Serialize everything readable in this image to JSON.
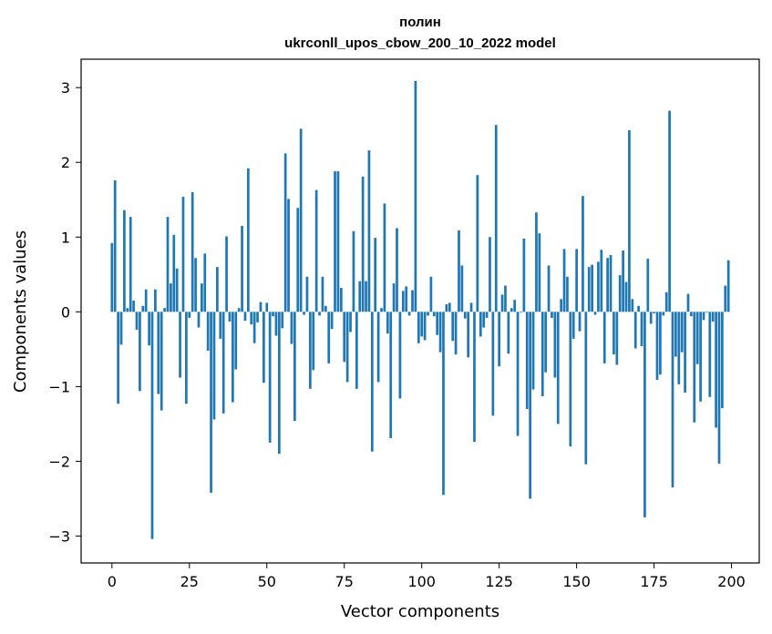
{
  "chart_data": {
    "type": "bar",
    "title": "полин",
    "subtitle": "ukrconll_upos_cbow_200_10_2022 model",
    "xlabel": "Vector components",
    "ylabel": "Components values",
    "xlim": [
      -9.95,
      208.95
    ],
    "ylim": [
      -3.36,
      3.38
    ],
    "xticks": [
      0,
      25,
      50,
      75,
      100,
      125,
      150,
      175,
      200
    ],
    "xtick_labels": [
      "0",
      "25",
      "50",
      "75",
      "100",
      "125",
      "150",
      "175",
      "200"
    ],
    "yticks": [
      -3,
      -2,
      -1,
      0,
      1,
      2,
      3
    ],
    "ytick_labels": [
      "−3",
      "−2",
      "−1",
      "0",
      "1",
      "2",
      "3"
    ],
    "grid": false,
    "bar_color": "#1f77b4",
    "x": [
      0,
      1,
      2,
      3,
      4,
      5,
      6,
      7,
      8,
      9,
      10,
      11,
      12,
      13,
      14,
      15,
      16,
      17,
      18,
      19,
      20,
      21,
      22,
      23,
      24,
      25,
      26,
      27,
      28,
      29,
      30,
      31,
      32,
      33,
      34,
      35,
      36,
      37,
      38,
      39,
      40,
      41,
      42,
      43,
      44,
      45,
      46,
      47,
      48,
      49,
      50,
      51,
      52,
      53,
      54,
      55,
      56,
      57,
      58,
      59,
      60,
      61,
      62,
      63,
      64,
      65,
      66,
      67,
      68,
      69,
      70,
      71,
      72,
      73,
      74,
      75,
      76,
      77,
      78,
      79,
      80,
      81,
      82,
      83,
      84,
      85,
      86,
      87,
      88,
      89,
      90,
      91,
      92,
      93,
      94,
      95,
      96,
      97,
      98,
      99,
      100,
      101,
      102,
      103,
      104,
      105,
      106,
      107,
      108,
      109,
      110,
      111,
      112,
      113,
      114,
      115,
      116,
      117,
      118,
      119,
      120,
      121,
      122,
      123,
      124,
      125,
      126,
      127,
      128,
      129,
      130,
      131,
      132,
      133,
      134,
      135,
      136,
      137,
      138,
      139,
      140,
      141,
      142,
      143,
      144,
      145,
      146,
      147,
      148,
      149,
      150,
      151,
      152,
      153,
      154,
      155,
      156,
      157,
      158,
      159,
      160,
      161,
      162,
      163,
      164,
      165,
      166,
      167,
      168,
      169,
      170,
      171,
      172,
      173,
      174,
      175,
      176,
      177,
      178,
      179,
      180,
      181,
      182,
      183,
      184,
      185,
      186,
      187,
      188,
      189,
      190,
      191,
      192,
      193,
      194,
      195,
      196,
      197,
      198,
      199
    ],
    "values": [
      0.92,
      1.76,
      -1.23,
      -0.44,
      1.36,
      0.05,
      1.27,
      0.15,
      -0.24,
      -1.06,
      0.08,
      0.3,
      -0.45,
      -3.04,
      0.3,
      -1.1,
      -1.32,
      0.05,
      1.27,
      0.38,
      1.03,
      0.58,
      -0.88,
      1.54,
      -1.23,
      -0.08,
      1.6,
      0.72,
      -0.21,
      0.38,
      0.78,
      -0.52,
      -2.42,
      -1.44,
      0.6,
      -0.36,
      -1.36,
      1.01,
      -0.13,
      -1.21,
      -0.77,
      0.05,
      1.15,
      -0.12,
      1.92,
      -0.17,
      -0.42,
      -0.14,
      0.13,
      -0.95,
      0.12,
      -1.75,
      -0.06,
      -0.32,
      -1.9,
      -0.22,
      2.12,
      1.51,
      -0.43,
      -1.46,
      1.39,
      2.45,
      -0.04,
      0.47,
      -1.03,
      -0.78,
      1.63,
      -0.05,
      0.47,
      0.08,
      -0.69,
      -0.23,
      1.88,
      1.88,
      0.32,
      -0.67,
      -0.94,
      -0.27,
      1.08,
      -1.03,
      0.41,
      1.81,
      0.41,
      2.16,
      -1.87,
      0.99,
      -0.94,
      0.05,
      1.45,
      -0.29,
      -1.69,
      0.38,
      1.12,
      -1.16,
      0.28,
      0.34,
      -0.05,
      0.29,
      3.09,
      -0.42,
      -0.33,
      -0.38,
      -0.05,
      0.47,
      -0.06,
      -0.31,
      -0.54,
      -2.45,
      0.1,
      0.12,
      -0.39,
      -0.57,
      1.09,
      0.62,
      -0.09,
      -0.61,
      0.12,
      -1.74,
      1.83,
      -0.33,
      -0.21,
      -0.08,
      1.0,
      -1.39,
      2.5,
      -0.73,
      0.23,
      0.35,
      -0.56,
      0.05,
      0.16,
      -1.66,
      -0.01,
      0.98,
      -1.3,
      -2.5,
      -1.04,
      1.33,
      1.05,
      -1.13,
      -0.81,
      0.62,
      -0.08,
      -0.88,
      -1.5,
      0.17,
      0.84,
      0.47,
      -1.8,
      -0.36,
      0.84,
      -0.26,
      1.55,
      -2.04,
      0.6,
      0.63,
      -0.04,
      0.67,
      0.83,
      -0.69,
      0.72,
      0.76,
      -0.57,
      -0.71,
      0.49,
      0.82,
      0.4,
      2.43,
      0.17,
      -0.49,
      0.08,
      -0.46,
      -2.75,
      0.71,
      -0.16,
      -0.02,
      -0.91,
      -0.84,
      -0.05,
      0.26,
      2.69,
      -2.35,
      -0.6,
      -0.97,
      -0.54,
      -1.08,
      0.24,
      -0.06,
      -1.48,
      -0.7,
      -1.2,
      -0.11,
      -0.01,
      -1.14,
      -0.13,
      -1.55,
      -2.03,
      -1.29,
      0.35,
      0.69
    ]
  }
}
